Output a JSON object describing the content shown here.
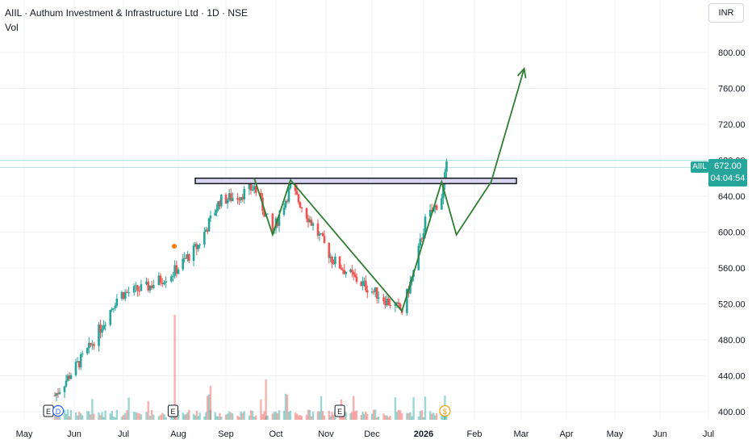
{
  "header": {
    "title": "AIIL · Authum Investment & Infrastructure Ltd · 1D · NSE",
    "volume_label": "Vol",
    "currency": "INR"
  },
  "price_marker": {
    "symbol": "AIIL",
    "price": "672.00",
    "countdown": "04:04:54",
    "color": "#26a69a"
  },
  "colors": {
    "up": "#26a69a",
    "down": "#ef5350",
    "drawing": "#2e7d32",
    "zone_fill": "#d8d4f0",
    "grid": "#eef0f3"
  },
  "chart_data": {
    "type": "candlestick",
    "x_tick_labels": [
      "May",
      "Jun",
      "Jul",
      "Aug",
      "Sep",
      "Oct",
      "Nov",
      "Dec",
      "2026",
      "Feb",
      "Mar",
      "Apr",
      "May",
      "Jun",
      "Jul"
    ],
    "y_ticks": [
      400,
      440,
      480,
      520,
      560,
      600,
      640,
      680,
      720,
      760,
      800
    ],
    "y_tick_labels": [
      "400.00",
      "440.00",
      "480.00",
      "520.00",
      "560.00",
      "600.00",
      "640.00",
      "680.00",
      "720.00",
      "760.00",
      "800.00"
    ],
    "ylim": [
      396,
      822
    ],
    "last_price": 672,
    "resistance_zone": {
      "top": 660,
      "bottom": 654
    },
    "pattern_path": [
      {
        "x": "2025-09-18",
        "y": 660
      },
      {
        "x": "2025-09-29",
        "y": 597
      },
      {
        "x": "2025-10-10",
        "y": 658
      },
      {
        "x": "2025-12-19",
        "y": 512
      },
      {
        "x": "2026-01-12",
        "y": 656
      },
      {
        "x": "2026-01-21",
        "y": 597
      },
      {
        "x": "2026-02-11",
        "y": 656
      },
      {
        "x": "2026-03-03",
        "y": 782
      }
    ],
    "events": [
      {
        "label": "E",
        "x": "2025-05-16"
      },
      {
        "label": "D",
        "x": "2025-05-22"
      },
      {
        "label": "E",
        "x": "2025-07-29"
      },
      {
        "label": "E",
        "x": "2025-11-10"
      },
      {
        "label": "$",
        "x": "2026-01-14"
      }
    ],
    "volume_shown": true
  }
}
